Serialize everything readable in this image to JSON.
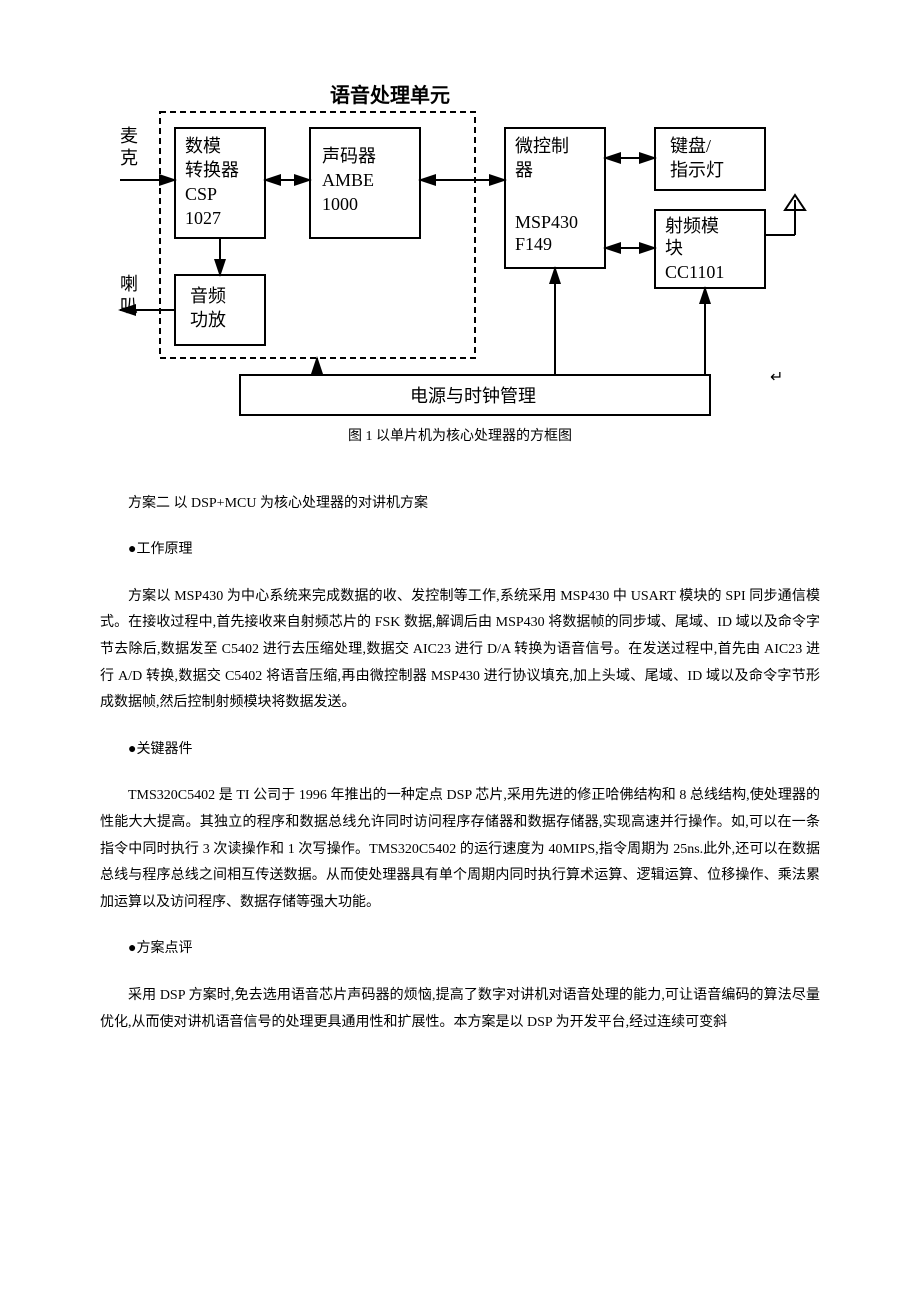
{
  "diagram": {
    "title_top": "语音处理单元",
    "label_mic": "麦\n克",
    "label_speaker": "喇\n叭",
    "box_adc": "数模\n转换器\nCSP\n1027",
    "box_vocoder": "声码器\n\nAMBE\n1000",
    "box_amp": "音频\n功放",
    "box_mcu_top": "微控制\n器",
    "box_mcu_bottom": "MSP430\nF149",
    "box_keypad": "键盘/\n指示灯",
    "box_rf_top": "射频模\n块",
    "box_rf_bottom": "CC1101",
    "box_power": "电源与时钟管理",
    "caption": "图 1 以单片机为核心处理器的方框图",
    "colors": {
      "stroke": "#000000",
      "bg": "#ffffff",
      "font_cn": "SimSun"
    },
    "line_width_outer": 2,
    "line_width_inner": 2,
    "dash_pattern": "6,4",
    "font_size_box": 18,
    "font_size_title": 20,
    "font_size_side": 18
  },
  "text": {
    "scheme2_title": "方案二 以 DSP+MCU 为核心处理器的对讲机方案",
    "principle_heading": "●工作原理",
    "principle_body": "方案以 MSP430 为中心系统来完成数据的收、发控制等工作,系统采用 MSP430 中 USART 模块的 SPI 同步通信模式。在接收过程中,首先接收来自射频芯片的 FSK 数据,解调后由 MSP430 将数据帧的同步域、尾域、ID 域以及命令字节去除后,数据发至 C5402 进行去压缩处理,数据交 AIC23 进行 D/A 转换为语音信号。在发送过程中,首先由 AIC23 进行 A/D 转换,数据交 C5402 将语音压缩,再由微控制器 MSP430 进行协议填充,加上头域、尾域、ID 域以及命令字节形成数据帧,然后控制射频模块将数据发送。",
    "device_heading": "●关键器件",
    "device_body": "TMS320C5402 是 TI 公司于 1996 年推出的一种定点 DSP 芯片,采用先进的修正哈佛结构和 8 总线结构,使处理器的性能大大提高。其独立的程序和数据总线允许同时访问程序存储器和数据存储器,实现高速并行操作。如,可以在一条指令中同时执行 3 次读操作和 1 次写操作。TMS320C5402 的运行速度为 40MIPS,指令周期为 25ns.此外,还可以在数据总线与程序总线之间相互传送数据。从而使处理器具有单个周期内同时执行算术运算、逻辑运算、位移操作、乘法累加运算以及访问程序、数据存储等强大功能。",
    "review_heading": "●方案点评",
    "review_body": "采用 DSP 方案时,免去选用语音芯片声码器的烦恼,提高了数字对讲机对语音处理的能力,可让语音编码的算法尽量优化,从而使对讲机语音信号的处理更具通用性和扩展性。本方案是以 DSP 为开发平台,经过连续可变斜"
  }
}
